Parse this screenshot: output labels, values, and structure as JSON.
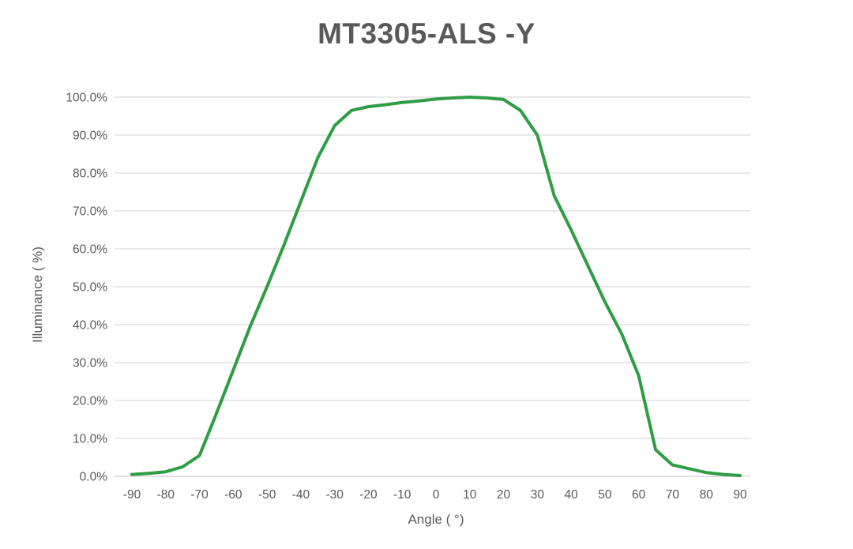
{
  "chart_data": {
    "type": "line",
    "title": "MT3305-ALS -Y",
    "xlabel": "Angle ( °)",
    "ylabel": "Illuminance ( %)",
    "xlim": [
      -90,
      90
    ],
    "ylim": [
      0,
      100
    ],
    "grid": "horizontal",
    "legend": "none",
    "line_color": "#2e9d44",
    "gridline_color": "#d9d9d9",
    "text_color": "#595959",
    "x_ticks": [
      -90,
      -80,
      -70,
      -60,
      -50,
      -40,
      -30,
      -20,
      -10,
      0,
      10,
      20,
      30,
      40,
      50,
      60,
      70,
      80,
      90
    ],
    "y_tick_labels": [
      "0.0%",
      "10.0%",
      "20.0%",
      "30.0%",
      "40.0%",
      "50.0%",
      "60.0%",
      "70.0%",
      "80.0%",
      "90.0%",
      "100.0%"
    ],
    "x": [
      -90,
      -85,
      -80,
      -75,
      -70,
      -65,
      -60,
      -55,
      -50,
      -45,
      -40,
      -35,
      -30,
      -25,
      -20,
      -15,
      -10,
      -5,
      0,
      5,
      10,
      15,
      20,
      25,
      30,
      35,
      40,
      45,
      50,
      55,
      60,
      65,
      70,
      75,
      80,
      85,
      90
    ],
    "series": [
      {
        "name": "Illuminance",
        "values": [
          0.5,
          0.8,
          1.2,
          2.5,
          5.5,
          16.5,
          28.0,
          39.5,
          50.0,
          61.0,
          72.5,
          84.0,
          92.5,
          96.5,
          97.5,
          98.0,
          98.6,
          99.0,
          99.5,
          99.8,
          100.0,
          99.8,
          99.4,
          96.5,
          90.0,
          74.0,
          65.0,
          55.5,
          46.0,
          37.5,
          26.5,
          7.0,
          3.0,
          2.0,
          1.0,
          0.5,
          0.2
        ]
      }
    ]
  }
}
